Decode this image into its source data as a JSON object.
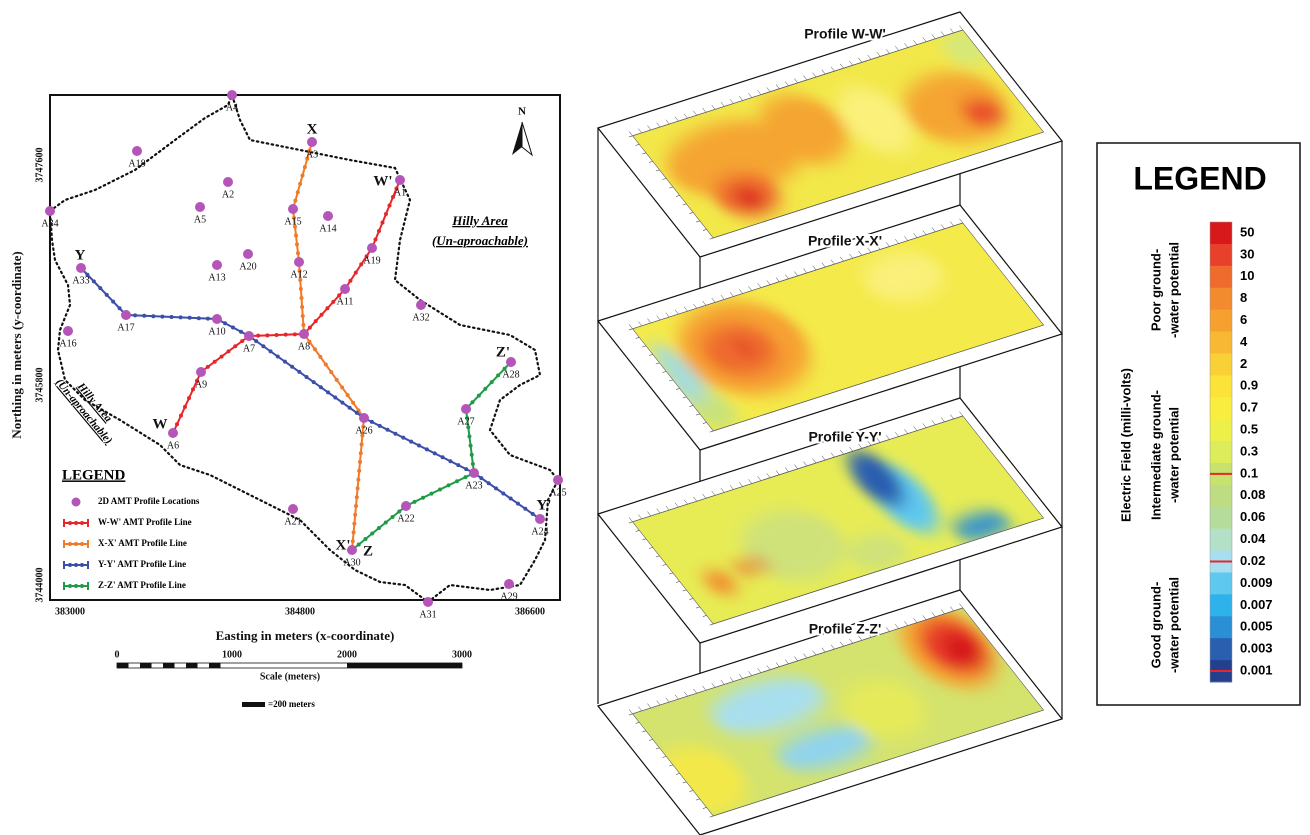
{
  "map": {
    "x_axis_label": "Easting in meters (x-coordinate)",
    "y_axis_label": "Northing in meters (y-coordinate)",
    "x_ticks": [
      383000,
      384800,
      386600
    ],
    "y_ticks": [
      3747600,
      3745800,
      3744000
    ],
    "north": "N",
    "hilly_area": [
      {
        "title": "Hilly Area",
        "note": "(Un-aproachable)"
      },
      {
        "title": "Hilly Area",
        "note": "(Un-aproachable)"
      }
    ],
    "stations": [
      "A1",
      "A2",
      "A3",
      "A4",
      "A5",
      "A6",
      "A7",
      "A8",
      "A9",
      "A10",
      "A11",
      "A12",
      "A13",
      "A14",
      "A15",
      "A16",
      "A17",
      "A18",
      "A19",
      "A20",
      "A21",
      "A22",
      "A23",
      "A24",
      "A25",
      "A26",
      "A27",
      "A28",
      "A29",
      "A30",
      "A31",
      "A32",
      "A33",
      "A34"
    ],
    "profile_ends": [
      "W",
      "W'",
      "X",
      "X'",
      "Y",
      "Y'",
      "Z",
      "Z'"
    ],
    "legend": {
      "title": "LEGEND",
      "items": [
        "2D AMT Profile Locations",
        "W-W' AMT Profile Line",
        "X-X' AMT Profile Line",
        "Y-Y' AMT Profile Line",
        "Z-Z' AMT Profile Line"
      ]
    },
    "scale": {
      "ticks": [
        0,
        1000,
        2000,
        3000
      ],
      "label": "Scale (meters)",
      "bar_note": "=200 meters"
    }
  },
  "profiles": [
    {
      "title": "Profile W-W'"
    },
    {
      "title": "Profile X-X'"
    },
    {
      "title": "Profile Y-Y'"
    },
    {
      "title": "Profile Z-Z'"
    }
  ],
  "color_legend": {
    "title": "LEGEND",
    "axis_label": "Electric Field (milli-volts)",
    "values": [
      50,
      30,
      10,
      8,
      6,
      4,
      2,
      0.9,
      0.7,
      0.5,
      0.3,
      0.1,
      0.08,
      0.06,
      0.04,
      0.02,
      0.009,
      0.007,
      0.005,
      0.003,
      0.001
    ],
    "zones": [
      {
        "line1": "Poor ground-",
        "line2": "-water potential"
      },
      {
        "line1": "Intermediate ground-",
        "line2": "-water potential"
      },
      {
        "line1": "Good ground-",
        "line2": "-water potential"
      }
    ]
  }
}
